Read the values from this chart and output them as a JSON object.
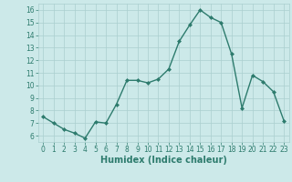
{
  "xlabel": "Humidex (Indice chaleur)",
  "x": [
    0,
    1,
    2,
    3,
    4,
    5,
    6,
    7,
    8,
    9,
    10,
    11,
    12,
    13,
    14,
    15,
    16,
    17,
    18,
    19,
    20,
    21,
    22,
    23
  ],
  "y": [
    7.5,
    7.0,
    6.5,
    6.2,
    5.8,
    7.1,
    7.0,
    8.5,
    10.4,
    10.4,
    10.2,
    10.5,
    11.3,
    13.5,
    14.8,
    16.0,
    15.4,
    15.0,
    12.5,
    8.2,
    10.8,
    10.3,
    9.5,
    7.2
  ],
  "line_color": "#2d7b6d",
  "marker": "D",
  "marker_size": 2.0,
  "bg_color": "#cce9e9",
  "grid_color": "#aacfcf",
  "ylim": [
    5.5,
    16.5
  ],
  "xlim": [
    -0.5,
    23.5
  ],
  "yticks": [
    6,
    7,
    8,
    9,
    10,
    11,
    12,
    13,
    14,
    15,
    16
  ],
  "xticks": [
    0,
    1,
    2,
    3,
    4,
    5,
    6,
    7,
    8,
    9,
    10,
    11,
    12,
    13,
    14,
    15,
    16,
    17,
    18,
    19,
    20,
    21,
    22,
    23
  ],
  "tick_fontsize": 5.5,
  "xlabel_fontsize": 7.0,
  "line_width": 1.0
}
